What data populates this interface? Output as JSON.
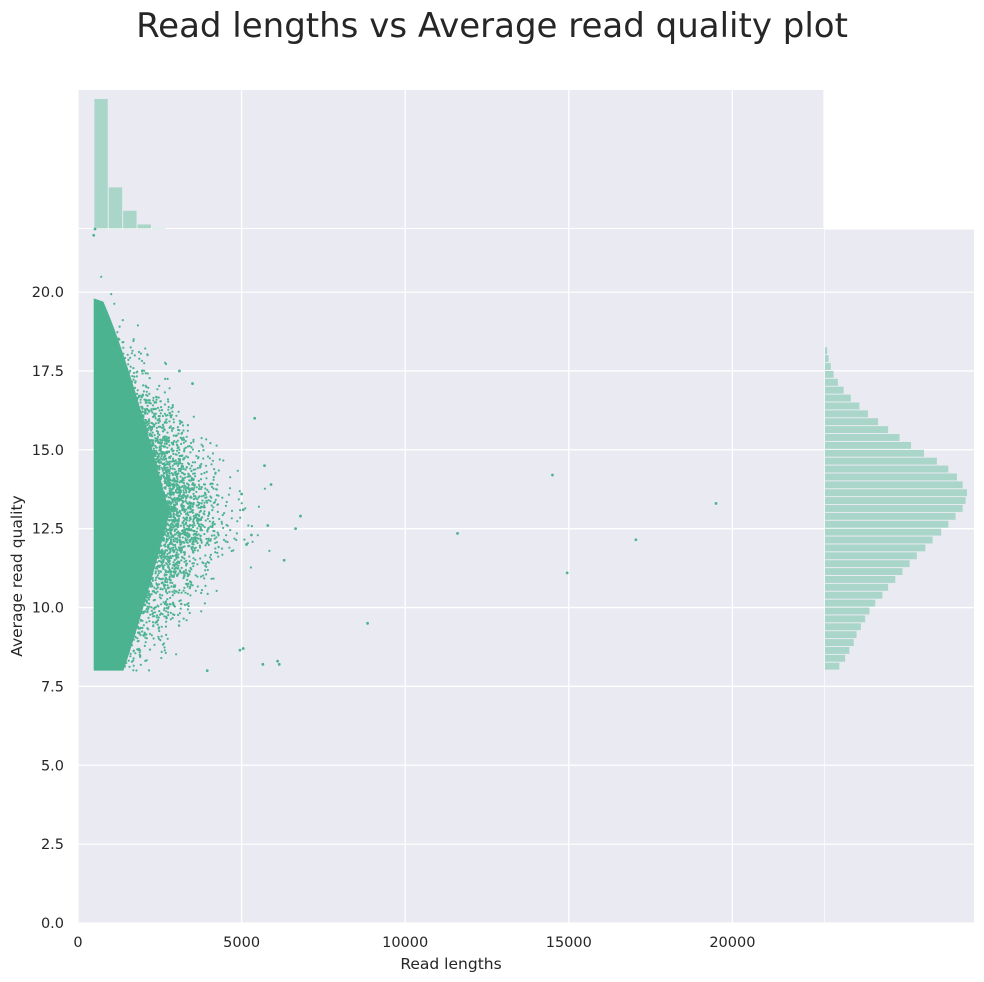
{
  "chart_data": {
    "type": "scatter",
    "title": "Read lengths vs Average read quality plot",
    "xlabel": "Read lengths",
    "ylabel": "Average read quality",
    "xlim": [
      0,
      22800
    ],
    "ylim": [
      0,
      22
    ],
    "x_ticks": [
      "0",
      "5000",
      "10000",
      "15000",
      "20000"
    ],
    "x_tick_values": [
      0,
      5000,
      10000,
      15000,
      20000
    ],
    "y_ticks": [
      "0.0",
      "2.5",
      "5.0",
      "7.5",
      "10.0",
      "12.5",
      "15.0",
      "17.5",
      "20.0"
    ],
    "y_tick_values": [
      0,
      2.5,
      5,
      7.5,
      10,
      12.5,
      15,
      17.5,
      20
    ],
    "grid": true,
    "colors": {
      "background": "#eaeaf2",
      "grid": "#ffffff",
      "point": "#4cb391",
      "histogram": "#a9d6c8"
    },
    "outliers": [
      {
        "x": 19500,
        "y": 13.3
      },
      {
        "x": 17050,
        "y": 12.15
      },
      {
        "x": 14950,
        "y": 11.1
      },
      {
        "x": 14500,
        "y": 14.2
      },
      {
        "x": 11600,
        "y": 12.35
      },
      {
        "x": 8850,
        "y": 9.5
      },
      {
        "x": 6800,
        "y": 12.9
      },
      {
        "x": 6650,
        "y": 12.5
      },
      {
        "x": 6300,
        "y": 11.5
      },
      {
        "x": 6100,
        "y": 8.3
      },
      {
        "x": 6150,
        "y": 8.2
      },
      {
        "x": 5900,
        "y": 13.9
      },
      {
        "x": 5800,
        "y": 12.6
      },
      {
        "x": 5700,
        "y": 14.5
      },
      {
        "x": 5650,
        "y": 8.2
      },
      {
        "x": 5400,
        "y": 16.0
      },
      {
        "x": 5300,
        "y": 12.3
      },
      {
        "x": 5150,
        "y": 12.0
      },
      {
        "x": 5050,
        "y": 13.1
      },
      {
        "x": 5000,
        "y": 13.6
      },
      {
        "x": 5050,
        "y": 8.7
      },
      {
        "x": 4950,
        "y": 8.65
      },
      {
        "x": 3950,
        "y": 8.0
      },
      {
        "x": 3100,
        "y": 17.5
      },
      {
        "x": 3500,
        "y": 17.1
      },
      {
        "x": 480,
        "y": 21.8
      },
      {
        "x": 520,
        "y": 22.0
      }
    ],
    "length_histogram": {
      "bin_start": 500,
      "bin_width": 440,
      "counts": [
        100,
        32,
        14,
        3.5,
        0.8
      ]
    },
    "quality_histogram": {
      "bin_start": 8.0,
      "bin_width": 0.25,
      "counts": [
        10,
        14,
        17,
        20,
        22,
        25,
        28,
        31,
        35,
        40,
        44,
        49,
        54,
        59,
        64,
        70,
        75,
        81,
        86,
        91,
        96,
        98,
        99,
        96,
        92,
        86,
        78,
        69,
        60,
        52,
        44,
        37,
        30,
        24,
        18,
        13,
        9,
        6,
        4,
        2.5,
        1.5
      ]
    }
  }
}
